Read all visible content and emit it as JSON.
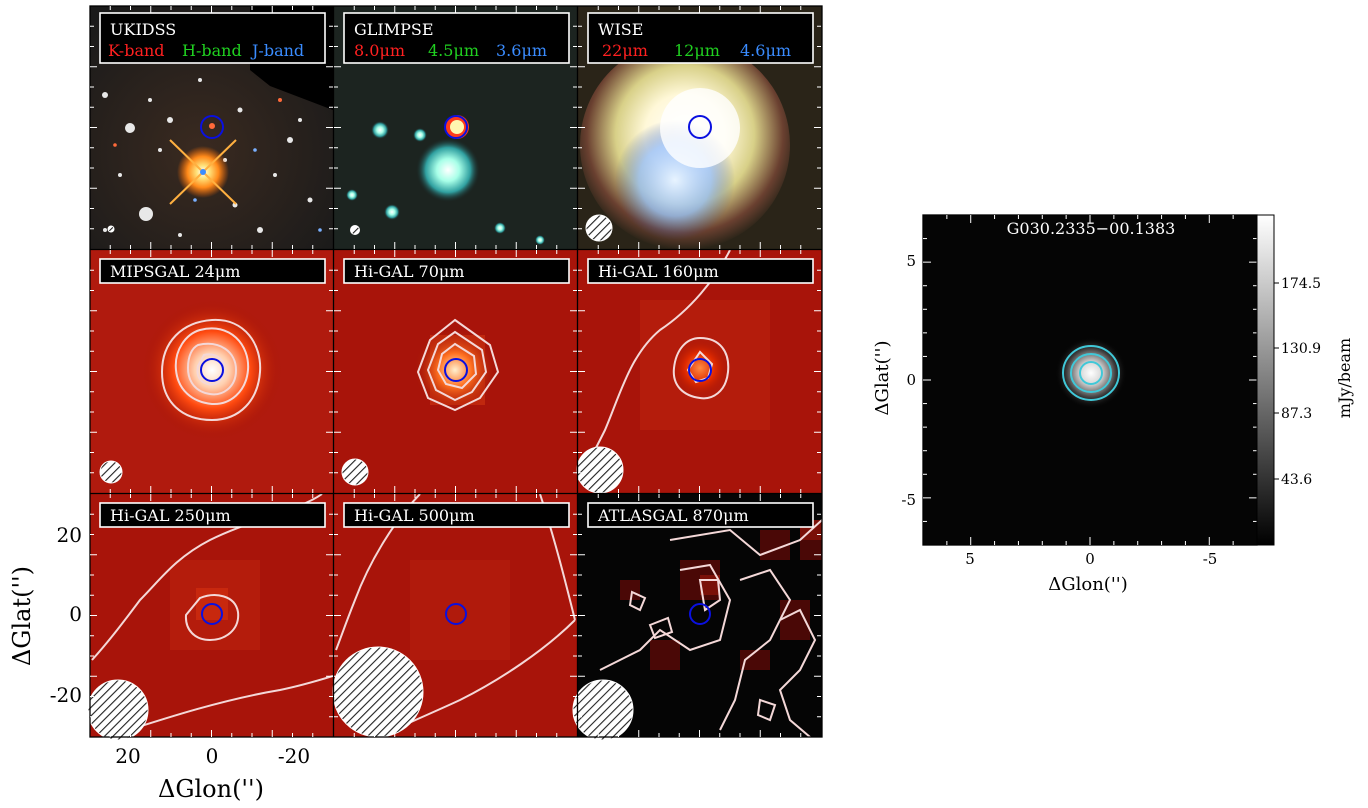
{
  "mosaic": {
    "panels": [
      {
        "id": "ukidss",
        "title": "UKIDSS",
        "bands": [
          {
            "label": "K-band",
            "color": "#ff2020"
          },
          {
            "label": "H-band",
            "color": "#20d020"
          },
          {
            "label": "J-band",
            "color": "#3a8cff"
          }
        ]
      },
      {
        "id": "glimpse",
        "title": "GLIMPSE",
        "bands": [
          {
            "label": "8.0μm",
            "color": "#ff2020"
          },
          {
            "label": "4.5μm",
            "color": "#20d020"
          },
          {
            "label": "3.6μm",
            "color": "#3a8cff"
          }
        ]
      },
      {
        "id": "wise",
        "title": "WISE",
        "bands": [
          {
            "label": "22μm",
            "color": "#ff2020"
          },
          {
            "label": "12μm",
            "color": "#20d020"
          },
          {
            "label": "4.6μm",
            "color": "#3a8cff"
          }
        ]
      },
      {
        "id": "mipsgal",
        "title": "MIPSGAL 24μm",
        "bands": []
      },
      {
        "id": "higal70",
        "title": "Hi-GAL 70μm",
        "bands": []
      },
      {
        "id": "higal160",
        "title": "Hi-GAL 160μm",
        "bands": []
      },
      {
        "id": "higal250",
        "title": "Hi-GAL 250μm",
        "bands": []
      },
      {
        "id": "higal500",
        "title": "Hi-GAL 500μm",
        "bands": []
      },
      {
        "id": "atlasgal",
        "title": "ATLASGAL 870μm",
        "bands": []
      }
    ],
    "xlabel": "ΔGlon('')",
    "ylabel": "ΔGlat('')",
    "xticks": [
      "20",
      "0",
      "-20"
    ],
    "yticks": [
      "20",
      "0",
      "-20"
    ]
  },
  "inset": {
    "title": "G030.2335−00.1383",
    "xlabel": "ΔGlon('')",
    "ylabel": "ΔGlat('')",
    "xticks": [
      "5",
      "0",
      "-5"
    ],
    "yticks": [
      "5",
      "0",
      "-5"
    ],
    "colorbar_label": "mJy/beam",
    "colorbar_ticks": [
      "174.5",
      "130.9",
      "87.3",
      "43.6"
    ],
    "contour_color": "#40c8d8"
  }
}
